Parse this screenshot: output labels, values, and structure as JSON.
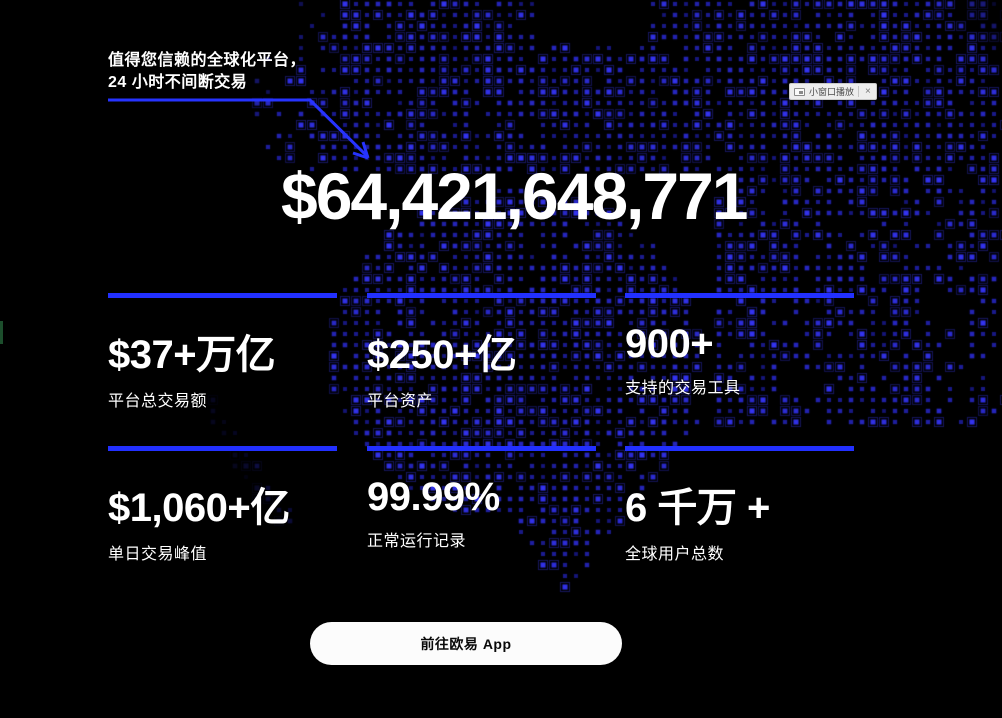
{
  "tagline": "值得您信赖的全球化平台，24 小时不间断交易",
  "pip": {
    "icon": "picture-in-picture-icon",
    "label": "小窗口播放",
    "close_label": "×"
  },
  "headline_value": "$64,421,648,771",
  "stats": [
    {
      "value": "$37+万亿",
      "label": "平台总交易额"
    },
    {
      "value": "$250+亿",
      "label": "平台资产"
    },
    {
      "value": "900+",
      "label": "支持的交易工具"
    },
    {
      "value": "$1,060+亿",
      "label": "单日交易峰值"
    },
    {
      "value": "99.99%",
      "label": "正常运行记录"
    },
    {
      "value": "6 千万 +",
      "label": "全球用户总数"
    }
  ],
  "cta_button_label": "前往欧易 App",
  "colors": {
    "background": "#000000",
    "accent_blue": "#2230ff",
    "dot_blue": "#2a2ae0",
    "text": "#ffffff"
  }
}
